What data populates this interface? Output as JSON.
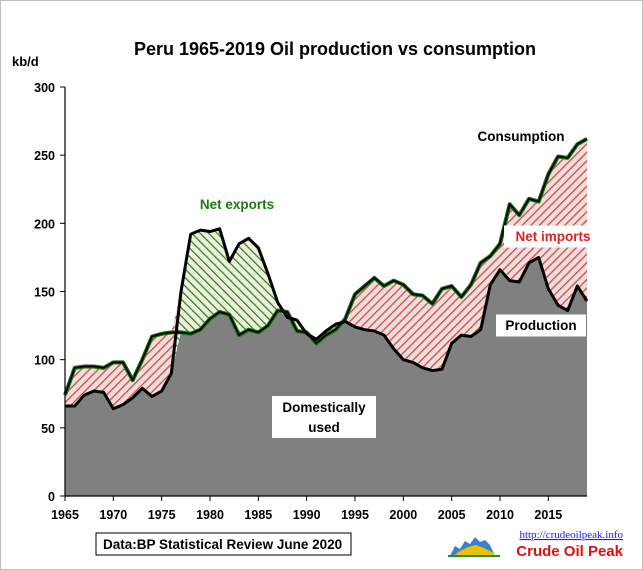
{
  "chart_data": {
    "type": "area",
    "title": "Peru 1965-2019 Oil production  vs consumption",
    "ylabel": "kb/d",
    "xlabel": "",
    "xlim": [
      1965,
      2019
    ],
    "ylim": [
      0,
      300
    ],
    "yticks": [
      0,
      50,
      100,
      150,
      200,
      250,
      300
    ],
    "xticks": [
      1965,
      1970,
      1975,
      1980,
      1985,
      1990,
      1995,
      2000,
      2005,
      2010,
      2015
    ],
    "grid": false,
    "legend": "none",
    "x": [
      1965,
      1966,
      1967,
      1968,
      1969,
      1970,
      1971,
      1972,
      1973,
      1974,
      1975,
      1976,
      1977,
      1978,
      1979,
      1980,
      1981,
      1982,
      1983,
      1984,
      1985,
      1986,
      1987,
      1988,
      1989,
      1990,
      1991,
      1992,
      1993,
      1994,
      1995,
      1996,
      1997,
      1998,
      1999,
      2000,
      2001,
      2002,
      2003,
      2004,
      2005,
      2006,
      2007,
      2008,
      2009,
      2010,
      2011,
      2012,
      2013,
      2014,
      2015,
      2016,
      2017,
      2018,
      2019
    ],
    "series": [
      {
        "name": "Consumption",
        "values": [
          74,
          94,
          95,
          95,
          94,
          98,
          98,
          85,
          100,
          117,
          119,
          120,
          120,
          119,
          122,
          130,
          135,
          133,
          118,
          122,
          120,
          125,
          136,
          135,
          121,
          120,
          112,
          118,
          122,
          130,
          148,
          154,
          160,
          154,
          158,
          155,
          148,
          147,
          141,
          152,
          154,
          146,
          155,
          171,
          176,
          185,
          214,
          206,
          218,
          216,
          236,
          249,
          248,
          258,
          262
        ]
      },
      {
        "name": "Production",
        "values": [
          66,
          66,
          74,
          77,
          76,
          64,
          67,
          72,
          79,
          73,
          77,
          90,
          150,
          192,
          195,
          194,
          196,
          172,
          185,
          189,
          182,
          163,
          142,
          131,
          129,
          119,
          115,
          121,
          126,
          128,
          124,
          122,
          121,
          118,
          108,
          100,
          98,
          94,
          92,
          93,
          112,
          118,
          117,
          122,
          155,
          166,
          158,
          157,
          171,
          175,
          152,
          140,
          136,
          154,
          143
        ]
      }
    ],
    "annotations": [
      "Net exports",
      "Net imports",
      "Consumption",
      "Production",
      "Domestically",
      "used"
    ],
    "source": "Data:BP Statistical Review June 2020",
    "url": "http://crudeoilpeak.info",
    "brand": "Crude Oil Peak",
    "colors": {
      "domestic": "#808080",
      "exports_hatch": "#2e7d12",
      "exports_label": "#1d7a12",
      "imports_hatch": "#c0504d",
      "imports_label": "#e02020",
      "imports_bg": "#f2dcdb",
      "exports_bg": "#ebf1de",
      "line": "#000000",
      "url": "#1a1aff",
      "brand": "#e01010"
    }
  }
}
